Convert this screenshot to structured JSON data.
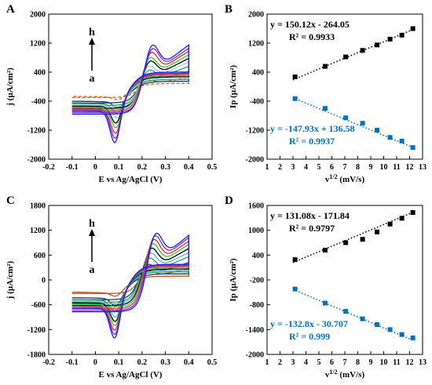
{
  "chart_data": [
    {
      "panel": "A",
      "type": "line",
      "subtype": "cyclic-voltammogram",
      "xlabel": "E vs Ag/AgCl (V)",
      "ylabel": "j (µA/cm²)",
      "xlim": [
        -0.2,
        0.5
      ],
      "ylim": [
        -2000,
        2000
      ],
      "xticks": [
        "-0.2",
        "-0.1",
        "0",
        "0.1",
        "0.2",
        "0.3",
        "0.4",
        "0.5"
      ],
      "yticks": [
        "-2000",
        "-1200",
        "-400",
        "400",
        "1200",
        "2000"
      ],
      "label_top": "h",
      "label_bottom": "a",
      "curves": [
        {
          "id": "a",
          "color": "#d95f0e",
          "dashed": true,
          "pa": 230,
          "ea": 0.22,
          "pc": -380,
          "ec": 0.1,
          "t1": 80,
          "t2": 250,
          "b0": -300
        },
        {
          "id": "b",
          "color": "#1f3b73",
          "dashed": false,
          "pa": 420,
          "ea": 0.22,
          "pc": -650,
          "ec": 0.1,
          "t1": 140,
          "t2": 420,
          "b0": -450
        },
        {
          "id": "c",
          "color": "#2ca25f",
          "dashed": false,
          "pa": 630,
          "ea": 0.225,
          "pc": -820,
          "ec": 0.095,
          "t1": 180,
          "t2": 560,
          "b0": -520
        },
        {
          "id": "d",
          "color": "#9ecae1",
          "dashed": false,
          "pa": 780,
          "ea": 0.225,
          "pc": -980,
          "ec": 0.095,
          "t1": 220,
          "t2": 680,
          "b0": -560
        },
        {
          "id": "e",
          "color": "#000000",
          "dashed": false,
          "pa": 950,
          "ea": 0.23,
          "pc": -1150,
          "ec": 0.09,
          "t1": 260,
          "t2": 780,
          "b0": -600
        },
        {
          "id": "f",
          "color": "#33cc33",
          "dashed": false,
          "pa": 1080,
          "ea": 0.23,
          "pc": -1300,
          "ec": 0.09,
          "t1": 300,
          "t2": 880,
          "b0": -640
        },
        {
          "id": "g",
          "color": "#e8283c",
          "dashed": false,
          "pa": 1260,
          "ea": 0.235,
          "pc": -1480,
          "ec": 0.088,
          "t1": 330,
          "t2": 980,
          "b0": -680
        },
        {
          "id": "h",
          "color": "#7b2fbe",
          "dashed": false,
          "pa": 1390,
          "ea": 0.24,
          "pc": -1640,
          "ec": 0.087,
          "t1": 360,
          "t2": 1060,
          "b0": -720
        },
        {
          "id": "i",
          "color": "#1a1aff",
          "dashed": false,
          "pa": 1520,
          "ea": 0.24,
          "pc": -1780,
          "ec": 0.085,
          "t1": 390,
          "t2": 1150,
          "b0": -760
        }
      ]
    },
    {
      "panel": "B",
      "type": "scatter",
      "xlabel": "v",
      "xlabel_sup": "1/2",
      "xlabel_unit": " (mV/s)",
      "ylabel": "Ip (µA/cm²)",
      "xlim": [
        1,
        13
      ],
      "ylim": [
        -2000,
        2000
      ],
      "xticks": [
        "1",
        "2",
        "3",
        "4",
        "5",
        "6",
        "7",
        "8",
        "9",
        "10",
        "11",
        "12",
        "13"
      ],
      "yticks": [
        "-2000",
        "-1200",
        "-400",
        "400",
        "1200",
        "2000"
      ],
      "series": [
        {
          "color": "#000000",
          "x": [
            3.16,
            5.48,
            7.07,
            8.37,
            9.49,
            10.49,
            11.4,
            12.25
          ],
          "y": [
            270,
            560,
            820,
            1000,
            1150,
            1310,
            1420,
            1600
          ],
          "fit_slope": 150.12,
          "fit_intercept": -264.05,
          "equation": "y = 150.12x - 264.05",
          "r2": "R² = 0.9933"
        },
        {
          "color": "#0070c0",
          "x": [
            3.16,
            5.48,
            7.07,
            8.37,
            9.49,
            10.49,
            11.4,
            12.25
          ],
          "y": [
            -330,
            -600,
            -860,
            -1010,
            -1200,
            -1400,
            -1500,
            -1680
          ],
          "fit_slope": -147.93,
          "fit_intercept": 136.58,
          "equation": "y = -147.93x + 136.58",
          "r2": "R² = 0.9937"
        }
      ]
    },
    {
      "panel": "C",
      "type": "line",
      "subtype": "cyclic-voltammogram",
      "xlabel": "E vs Ag/AgCl (V)",
      "ylabel": "j (µA/cm²)",
      "xlim": [
        -0.2,
        0.5
      ],
      "ylim": [
        -1800,
        1800
      ],
      "xticks": [
        "-0.2",
        "-0.1",
        "0",
        "0.1",
        "0.2",
        "0.3",
        "0.4",
        "0.5"
      ],
      "yticks": [
        "-1800",
        "-1200",
        "-600",
        "0",
        "600",
        "1200",
        "1800"
      ],
      "label_top": "h",
      "label_bottom": "a",
      "curves": [
        {
          "id": "a",
          "color": "#c0561e",
          "dashed": false,
          "pa": 300,
          "ea": 0.22,
          "pc": -420,
          "ec": 0.09,
          "t1": 90,
          "t2": 260,
          "b0": -330
        },
        {
          "id": "b",
          "color": "#1f3b73",
          "dashed": false,
          "pa": 520,
          "ea": 0.22,
          "pc": -700,
          "ec": 0.09,
          "t1": 140,
          "t2": 420,
          "b0": -480
        },
        {
          "id": "c",
          "color": "#2ca25f",
          "dashed": false,
          "pa": 720,
          "ea": 0.225,
          "pc": -880,
          "ec": 0.088,
          "t1": 190,
          "t2": 560,
          "b0": -540
        },
        {
          "id": "d",
          "color": "#5ab4e0",
          "dashed": false,
          "pa": 880,
          "ea": 0.23,
          "pc": -1020,
          "ec": 0.088,
          "t1": 230,
          "t2": 660,
          "b0": -580
        },
        {
          "id": "e",
          "color": "#000000",
          "dashed": false,
          "pa": 1030,
          "ea": 0.235,
          "pc": -1150,
          "ec": 0.087,
          "t1": 260,
          "t2": 760,
          "b0": -620
        },
        {
          "id": "f",
          "color": "#33cc33",
          "dashed": false,
          "pa": 1170,
          "ea": 0.24,
          "pc": -1270,
          "ec": 0.086,
          "t1": 290,
          "t2": 860,
          "b0": -660
        },
        {
          "id": "g",
          "color": "#e8283c",
          "dashed": false,
          "pa": 1300,
          "ea": 0.245,
          "pc": -1400,
          "ec": 0.085,
          "t1": 320,
          "t2": 940,
          "b0": -700
        },
        {
          "id": "h",
          "color": "#7b2fbe",
          "dashed": false,
          "pa": 1420,
          "ea": 0.25,
          "pc": -1520,
          "ec": 0.085,
          "t1": 350,
          "t2": 1020,
          "b0": -740
        },
        {
          "id": "i",
          "color": "#1a1aff",
          "dashed": false,
          "pa": 1500,
          "ea": 0.255,
          "pc": -1620,
          "ec": 0.084,
          "t1": 370,
          "t2": 1080,
          "b0": -770
        }
      ]
    },
    {
      "panel": "D",
      "type": "scatter",
      "xlabel": "v",
      "xlabel_sup": "1/2",
      "xlabel_unit": " (mV/s)",
      "ylabel": "Ip (µA/cm²)",
      "xlim": [
        1,
        13
      ],
      "ylim": [
        -2000,
        1600
      ],
      "xticks": [
        "1",
        "2",
        "3",
        "4",
        "5",
        "6",
        "7",
        "8",
        "9",
        "10",
        "11",
        "12",
        "13"
      ],
      "yticks": [
        "-2000",
        "-1400",
        "-800",
        "-200",
        "400",
        "1000",
        "1600"
      ],
      "series": [
        {
          "color": "#000000",
          "x": [
            3.16,
            5.48,
            7.07,
            8.37,
            9.49,
            10.49,
            11.4,
            12.25
          ],
          "y": [
            290,
            520,
            700,
            780,
            960,
            1150,
            1290,
            1430
          ],
          "fit_slope": 131.08,
          "fit_intercept": -171.84,
          "equation": "y = 131.08x - 171.84",
          "r2": "R² = 0.9797"
        },
        {
          "color": "#0070c0",
          "x": [
            3.16,
            5.48,
            7.07,
            8.37,
            9.49,
            10.49,
            11.4,
            12.25
          ],
          "y": [
            -420,
            -760,
            -960,
            -1140,
            -1280,
            -1400,
            -1520,
            -1600
          ],
          "fit_slope": -132.8,
          "fit_intercept": -30.707,
          "equation": "y = -132.8x - 30.707",
          "r2": "R² = 0.999"
        }
      ]
    }
  ]
}
